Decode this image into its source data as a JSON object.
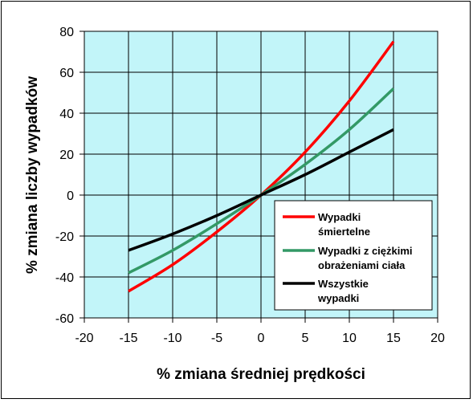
{
  "chart_data": {
    "type": "line",
    "xlabel": "% zmiana średniej prędkości",
    "ylabel": "% zmiana liczby wypadków",
    "xlim": [
      -20,
      20
    ],
    "ylim": [
      -60,
      80
    ],
    "xticks": [
      -20,
      -15,
      -10,
      -5,
      0,
      5,
      10,
      15,
      20
    ],
    "yticks": [
      80,
      60,
      40,
      20,
      0,
      -20,
      -40,
      -60
    ],
    "grid": true,
    "legend_placement": "bottom-right",
    "colors": {
      "plot_background": "#c2f5f9",
      "grid": "#000000"
    },
    "x": [
      -15,
      -10,
      -5,
      0,
      5,
      10,
      15
    ],
    "series": [
      {
        "name_lines": [
          "Wypadki",
          "śmiertelne"
        ],
        "color": "#ff0000",
        "values": [
          -47,
          -34,
          -18,
          0,
          21,
          46,
          75
        ]
      },
      {
        "name_lines": [
          "Wypadki z ciężkimi",
          "obrażeniami ciała"
        ],
        "color": "#339966",
        "values": [
          -38,
          -27,
          -14,
          0,
          15,
          32,
          52
        ]
      },
      {
        "name_lines": [
          "Wszystkie",
          "wypadki"
        ],
        "color": "#000000",
        "values": [
          -27,
          -19,
          -10,
          0,
          10,
          21,
          32
        ]
      }
    ]
  }
}
